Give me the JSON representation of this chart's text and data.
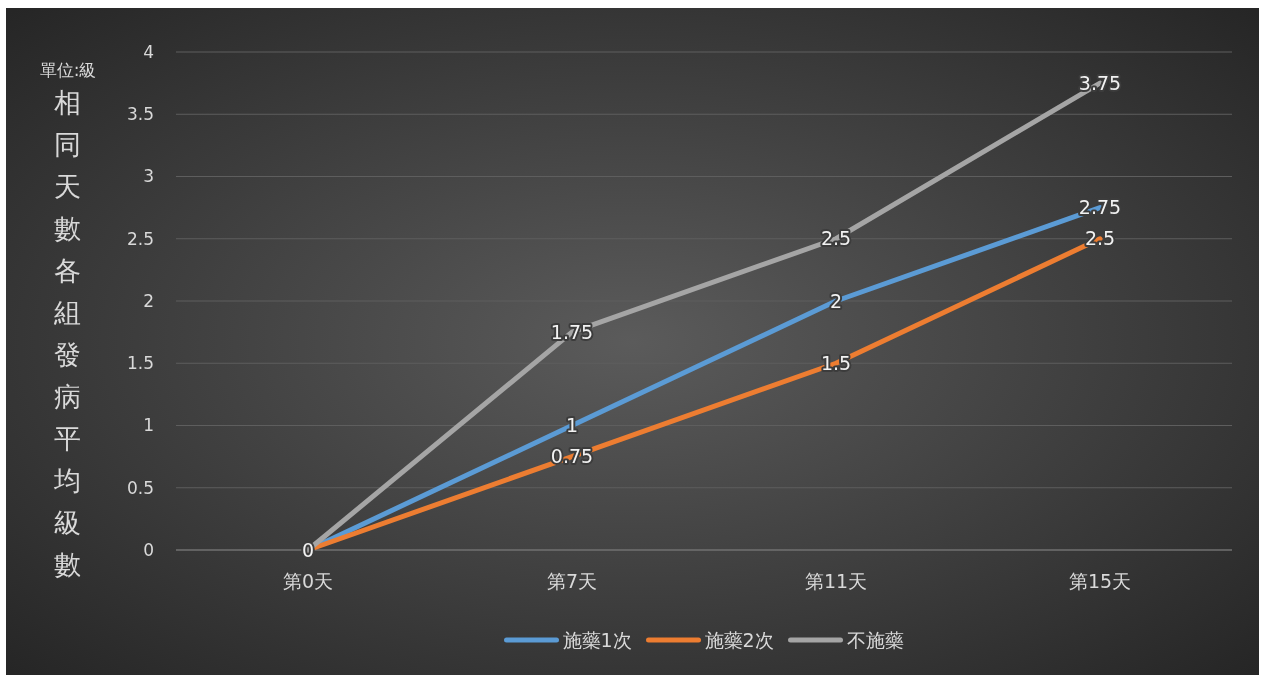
{
  "chart_data": {
    "type": "line",
    "categories": [
      "第0天",
      "第7天",
      "第11天",
      "第15天"
    ],
    "series": [
      {
        "name": "施藥1次",
        "color": "#5b9bd5",
        "values": [
          0,
          1,
          2,
          2.75
        ],
        "value_labels": [
          "0",
          "1",
          "2",
          "2.75"
        ]
      },
      {
        "name": "施藥2次",
        "color": "#ed7d31",
        "values": [
          0,
          0.75,
          1.5,
          2.5
        ],
        "value_labels": [
          null,
          "0.75",
          "1.5",
          "2.5"
        ]
      },
      {
        "name": "不施藥",
        "color": "#a5a5a5",
        "values": [
          0,
          1.75,
          2.5,
          3.75
        ],
        "value_labels": [
          null,
          "1.75",
          "2.5",
          "3.75"
        ]
      }
    ],
    "ylabel": "相同天數各組發病平均級數",
    "annotations": [
      "單位:級"
    ],
    "ylim": [
      0,
      4
    ],
    "yticks": [
      0,
      0.5,
      1,
      1.5,
      2,
      2.5,
      3,
      3.5,
      4
    ],
    "grid": "y",
    "legend": "bottom",
    "marker": "none",
    "line_style": "solid"
  }
}
